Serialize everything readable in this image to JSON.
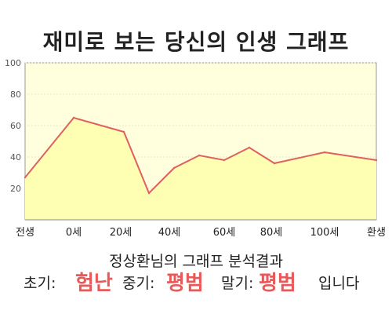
{
  "title": "재미로 보는 당신의 인생 그래프",
  "result": {
    "heading": "정상환님의 그래프 분석결과",
    "early_label": "초기:",
    "early_value": "험난",
    "mid_label": "중기:",
    "mid_value": "평범",
    "late_label": "말기:",
    "late_value": "평범",
    "ending": "입니다"
  },
  "colors": {
    "plot_bg": "#ffffdd",
    "area_fill": "#ffffb3",
    "line": "#e06060",
    "accent_text": "#e85a5a"
  },
  "chart_data": {
    "type": "area",
    "title": "재미로 보는 당신의 인생 그래프",
    "x_tick_labels": [
      "전생",
      "0세",
      "20세",
      "40세",
      "60세",
      "80세",
      "100세",
      "환생"
    ],
    "y_ticks": [
      20,
      40,
      60,
      80,
      100
    ],
    "ylim": [
      0,
      100
    ],
    "grid": true,
    "points": [
      {
        "x": "전생",
        "y": 27
      },
      {
        "x": "0세",
        "y": 65
      },
      {
        "x": "20세",
        "y": 56
      },
      {
        "x": "",
        "y": 17
      },
      {
        "x": "40세",
        "y": 33
      },
      {
        "x": "",
        "y": 41
      },
      {
        "x": "60세",
        "y": 38
      },
      {
        "x": "",
        "y": 46
      },
      {
        "x": "80세",
        "y": 36
      },
      {
        "x": "100세",
        "y": 43
      },
      {
        "x": "환생",
        "y": 38
      }
    ]
  }
}
